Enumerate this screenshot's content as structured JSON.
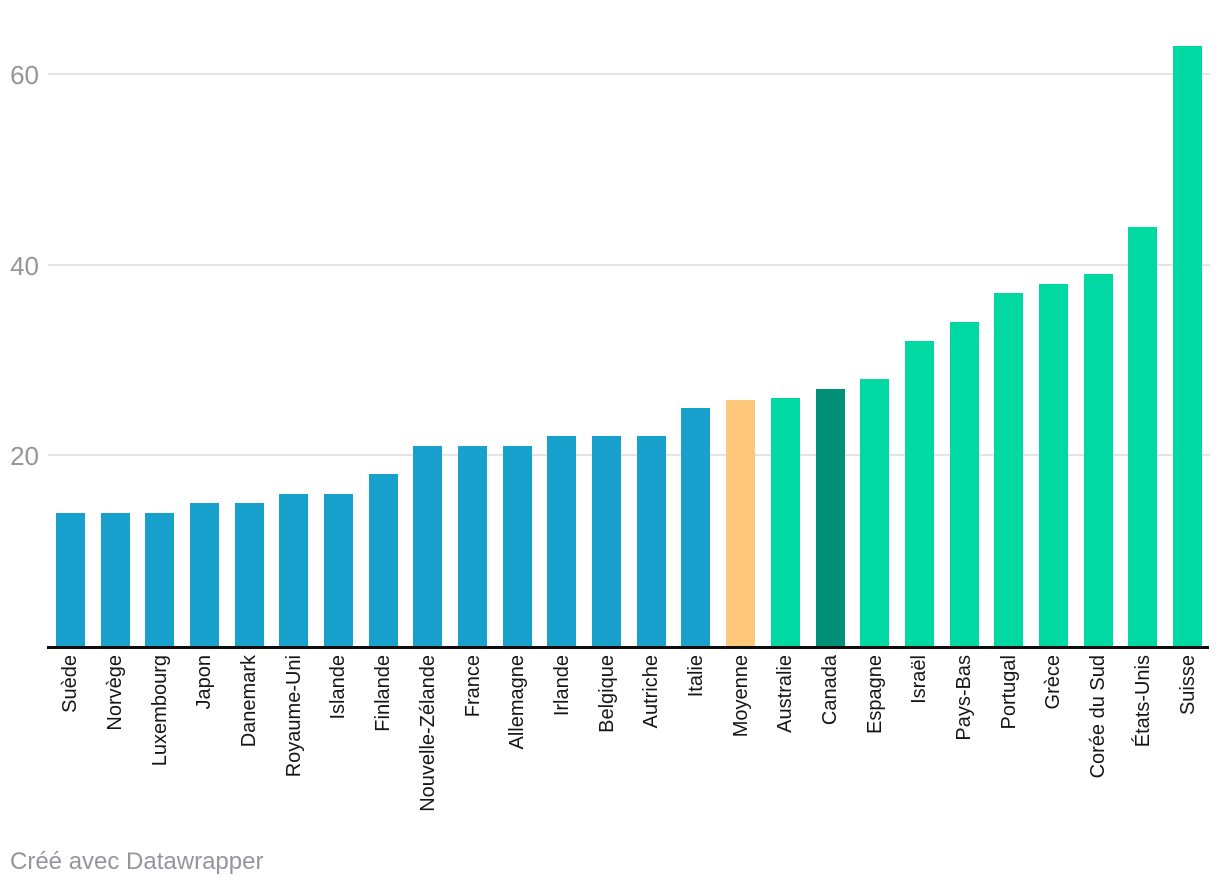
{
  "chart_data": {
    "type": "bar",
    "title": "",
    "xlabel": "",
    "ylabel": "",
    "categories": [
      "Suède",
      "Norvège",
      "Luxembourg",
      "Japon",
      "Danemark",
      "Royaume-Uni",
      "Islande",
      "Finlande",
      "Nouvelle-Zélande",
      "France",
      "Allemagne",
      "Irlande",
      "Belgique",
      "Autriche",
      "Italie",
      "Moyenne",
      "Australie",
      "Canada",
      "Espagne",
      "Israël",
      "Pays-Bas",
      "Portugal",
      "Grèce",
      "Corée du Sud",
      "États-Unis",
      "Suisse"
    ],
    "values": [
      14,
      14,
      14,
      15,
      15,
      16,
      16,
      18,
      21,
      21,
      21,
      22,
      22,
      22,
      25,
      25.8,
      26,
      27,
      28,
      32,
      34,
      37,
      38,
      39,
      44,
      63
    ],
    "bar_color_keys": [
      "blue",
      "blue",
      "blue",
      "blue",
      "blue",
      "blue",
      "blue",
      "blue",
      "blue",
      "blue",
      "blue",
      "blue",
      "blue",
      "blue",
      "blue",
      "orange",
      "green",
      "dark_green",
      "green",
      "green",
      "green",
      "green",
      "green",
      "green",
      "green",
      "green"
    ],
    "palette": {
      "blue": "#18A1CD",
      "orange": "#FDC87A",
      "green": "#00D9A2",
      "dark_green": "#009077"
    },
    "yticks": [
      20,
      40,
      60
    ],
    "ylim": [
      0,
      67.8
    ],
    "grid": true,
    "gridline_color": "#e4e4e4",
    "axis_color": "#0d0d0d",
    "legend": "none"
  },
  "footer": {
    "credit": "Créé avec Datawrapper"
  }
}
